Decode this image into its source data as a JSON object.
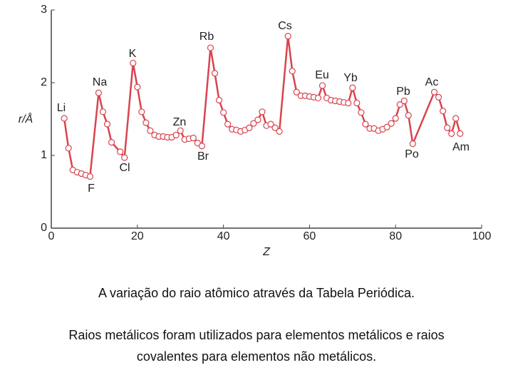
{
  "chart_data": {
    "type": "line",
    "xlabel": "Z",
    "ylabel": "r/Å",
    "x": [
      3,
      4,
      5,
      6,
      7,
      8,
      9,
      11,
      12,
      13,
      14,
      16,
      17,
      19,
      20,
      21,
      22,
      23,
      24,
      25,
      26,
      27,
      28,
      29,
      30,
      31,
      32,
      33,
      34,
      35,
      37,
      38,
      39,
      40,
      41,
      42,
      43,
      44,
      45,
      46,
      47,
      48,
      49,
      50,
      51,
      52,
      53,
      55,
      56,
      57,
      58,
      59,
      60,
      61,
      62,
      63,
      64,
      65,
      66,
      67,
      68,
      69,
      70,
      71,
      72,
      73,
      74,
      75,
      76,
      77,
      78,
      79,
      80,
      81,
      82,
      83,
      84,
      89,
      90,
      91,
      92,
      93,
      94,
      95
    ],
    "values": [
      1.51,
      1.1,
      0.8,
      0.77,
      0.75,
      0.73,
      0.71,
      1.86,
      1.6,
      1.43,
      1.18,
      1.05,
      0.97,
      2.27,
      1.94,
      1.6,
      1.45,
      1.34,
      1.28,
      1.26,
      1.26,
      1.25,
      1.25,
      1.28,
      1.34,
      1.22,
      1.23,
      1.24,
      1.17,
      1.13,
      2.48,
      2.13,
      1.76,
      1.59,
      1.43,
      1.36,
      1.35,
      1.33,
      1.35,
      1.38,
      1.44,
      1.49,
      1.6,
      1.41,
      1.43,
      1.38,
      1.33,
      2.64,
      2.16,
      1.87,
      1.82,
      1.82,
      1.81,
      1.8,
      1.79,
      1.96,
      1.79,
      1.76,
      1.75,
      1.74,
      1.73,
      1.72,
      1.93,
      1.72,
      1.59,
      1.43,
      1.37,
      1.37,
      1.34,
      1.36,
      1.39,
      1.44,
      1.51,
      1.7,
      1.75,
      1.55,
      1.16,
      1.87,
      1.8,
      1.61,
      1.38,
      1.3,
      1.51,
      1.3
    ],
    "color": "#d9434e",
    "xlim": [
      0,
      100
    ],
    "xticks": [
      0,
      20,
      40,
      60,
      80,
      100
    ],
    "ylim": [
      0,
      3
    ],
    "yticks": [
      0,
      1,
      2,
      3
    ],
    "annotations": [
      "Li",
      "F",
      "Na",
      "Cl",
      "K",
      "Zn",
      "Br",
      "Rb",
      "Cs",
      "Eu",
      "Yb",
      "Pb",
      "Po",
      "Ac",
      "Am"
    ],
    "caption": "A variação do raio atômico através da Tabela Periódica.",
    "note": "Raios metálicos foram utilizados para elementos metálicos e raios covalentes para elementos não metálicos."
  }
}
